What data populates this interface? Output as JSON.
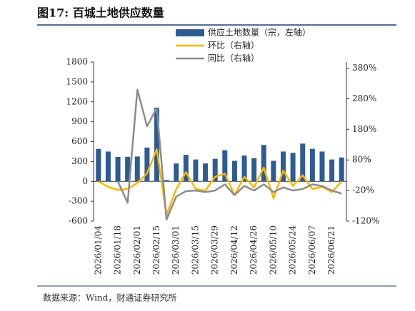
{
  "chart_data": {
    "type": "bar-line",
    "title": "图17: 百城土地供应数量",
    "source": "数据来源：Wind，财通证券研究所",
    "categories": [
      "2026/01/04",
      null,
      "2026/01/18",
      null,
      "2026/02/01",
      null,
      "2026/02/15",
      null,
      "2026/03/01",
      null,
      "2026/03/15",
      null,
      "2026/03/29",
      null,
      "2026/04/12",
      null,
      "2026/04/26",
      null,
      "2026/05/10",
      null,
      "2026/05/24",
      null,
      "2026/06/07",
      null,
      "2026/06/21",
      null
    ],
    "series": [
      {
        "name": "供应土地数量（宗，左轴）",
        "type": "bar",
        "color": "#2f5b93",
        "values": [
          490,
          450,
          370,
          370,
          375,
          510,
          1110,
          20,
          270,
          400,
          330,
          270,
          340,
          470,
          310,
          390,
          350,
          550,
          310,
          450,
          430,
          570,
          490,
          450,
          330,
          360
        ]
      },
      {
        "name": "环比（右轴）",
        "type": "line",
        "axis": "y2",
        "color": "#f5b800",
        "values": [
          10,
          -8,
          -18,
          -15,
          5,
          36,
          115,
          -100,
          -15,
          40,
          -15,
          -20,
          25,
          35,
          -35,
          25,
          -10,
          55,
          -45,
          45,
          -5,
          30,
          -15,
          -8,
          -25,
          10
        ]
      },
      {
        "name": "同比（右轴）",
        "type": "line",
        "axis": "y2",
        "color": "#8c8c8c",
        "values": [
          null,
          null,
          10,
          -60,
          310,
          190,
          250,
          -115,
          -40,
          -22,
          -20,
          -25,
          -20,
          0,
          -35,
          -5,
          -20,
          0,
          -25,
          -10,
          -20,
          -15,
          0,
          -5,
          -20,
          -30
        ]
      }
    ],
    "ylim": [
      -600,
      1800
    ],
    "yticks": [
      -600,
      -300,
      0,
      300,
      600,
      900,
      1200,
      1500,
      1800
    ],
    "y2lim": [
      -120,
      400
    ],
    "y2ticks": [
      {
        "value": -120,
        "label": "-120%"
      },
      {
        "value": -20,
        "label": "-20%"
      },
      {
        "value": 80,
        "label": "80%"
      },
      {
        "value": 180,
        "label": "180%"
      },
      {
        "value": 280,
        "label": "280%"
      },
      {
        "value": 380,
        "label": "380%"
      }
    ]
  }
}
